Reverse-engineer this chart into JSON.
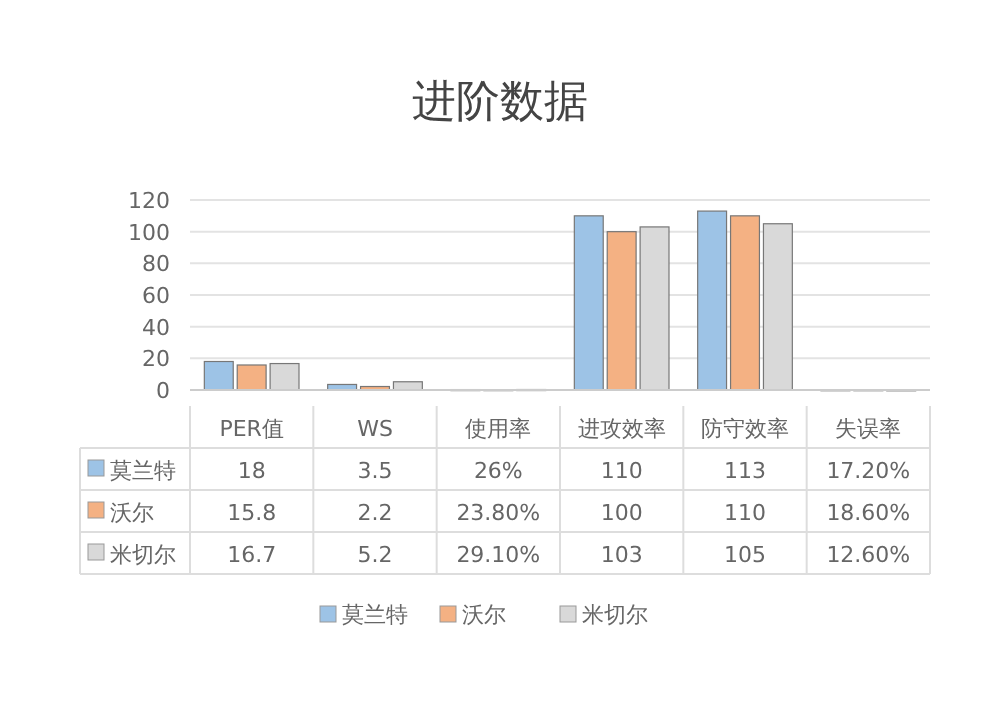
{
  "chart_data": {
    "type": "bar",
    "title": "进阶数据",
    "categories": [
      "PER值",
      "WS",
      "使用率",
      "进攻效率",
      "防守效率",
      "失误率"
    ],
    "series": [
      {
        "name": "莫兰特",
        "color": "#9dc3e6",
        "values": [
          18,
          3.5,
          0.26,
          110,
          113,
          0.172
        ],
        "value_labels": [
          "18",
          "3.5",
          "26%",
          "110",
          "113",
          "17.20%"
        ]
      },
      {
        "name": "沃尔",
        "color": "#f4b183",
        "values": [
          15.8,
          2.2,
          0.238,
          100,
          110,
          0.186
        ],
        "value_labels": [
          "15.8",
          "2.2",
          "23.80%",
          "100",
          "110",
          "18.60%"
        ]
      },
      {
        "name": "米切尔",
        "color": "#d9d9d9",
        "values": [
          16.7,
          5.2,
          0.291,
          103,
          105,
          0.126
        ],
        "value_labels": [
          "16.7",
          "5.2",
          "29.10%",
          "103",
          "105",
          "12.60%"
        ]
      }
    ],
    "ylim": [
      0,
      120
    ],
    "yticks": [
      0,
      20,
      40,
      60,
      80,
      100,
      120
    ],
    "grid": "y",
    "legend": "bottom"
  }
}
